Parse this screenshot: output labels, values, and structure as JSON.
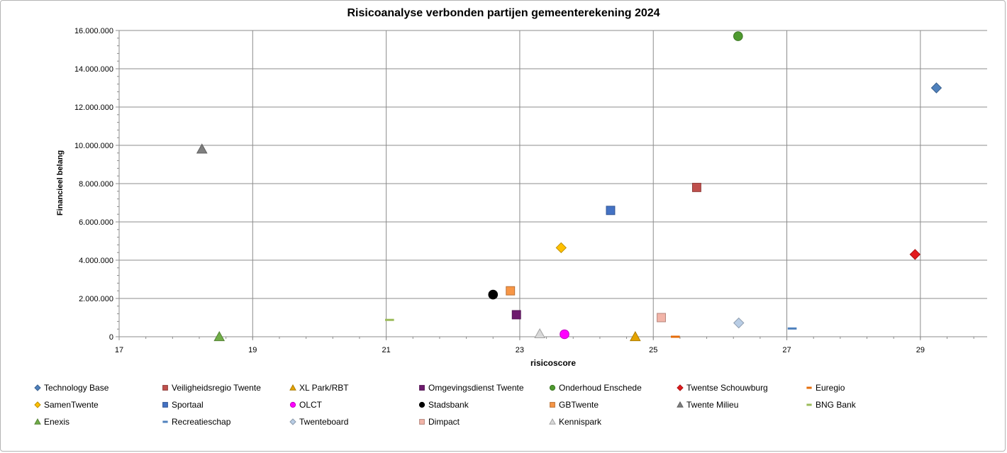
{
  "chart_data": {
    "type": "scatter",
    "title": "Risicoanalyse verbonden partijen gemeenterekening 2024",
    "xlabel": "risicoscore",
    "ylabel": "Financieel belang",
    "xlim": [
      17,
      30
    ],
    "ylim": [
      0,
      16000000
    ],
    "x_ticks": [
      17,
      19,
      21,
      23,
      25,
      27,
      29
    ],
    "x_tick_labels": [
      "17",
      "19",
      "21",
      "23",
      "25",
      "27",
      "29"
    ],
    "y_ticks": [
      0,
      2000000,
      4000000,
      6000000,
      8000000,
      10000000,
      12000000,
      14000000,
      16000000
    ],
    "y_tick_labels": [
      "0",
      "2.000.000",
      "4.000.000",
      "6.000.000",
      "8.000.000",
      "10.000.000",
      "12.000.000",
      "14.000.000",
      "16.000.000"
    ],
    "grid": true,
    "legend_position": "bottom",
    "series": [
      {
        "name": "Technology Base",
        "x": 29.24,
        "y": 13000000,
        "marker": "diamond",
        "color": "#4f81bd"
      },
      {
        "name": "Veiligheidsregio Twente",
        "x": 25.65,
        "y": 7800000,
        "marker": "square",
        "color": "#c0504d"
      },
      {
        "name": "XL Park/RBT",
        "x": 24.73,
        "y": 0,
        "marker": "triangle",
        "color": "#e5a400"
      },
      {
        "name": "Omgevingsdienst Twente",
        "x": 22.95,
        "y": 1150000,
        "marker": "square",
        "color": "#6e1a6e"
      },
      {
        "name": "Onderhoud Enschede",
        "x": 26.27,
        "y": 15700000,
        "marker": "circle",
        "color": "#4e9a2f"
      },
      {
        "name": "Twentse Schouwburg",
        "x": 28.92,
        "y": 4300000,
        "marker": "diamond",
        "color": "#e31a1c"
      },
      {
        "name": "Euregio",
        "x": 25.33,
        "y": 0,
        "marker": "dash",
        "color": "#e46c0a"
      },
      {
        "name": "SamenTwente",
        "x": 23.62,
        "y": 4650000,
        "marker": "diamond",
        "color": "#ffc000"
      },
      {
        "name": "Sportaal",
        "x": 24.36,
        "y": 6600000,
        "marker": "square",
        "color": "#4472c4"
      },
      {
        "name": "OLCT",
        "x": 23.67,
        "y": 130000,
        "marker": "circle",
        "color": "#ff00ff"
      },
      {
        "name": "Stadsbank",
        "x": 22.6,
        "y": 2200000,
        "marker": "circle",
        "color": "#000000"
      },
      {
        "name": "GBTwente",
        "x": 22.86,
        "y": 2400000,
        "marker": "square",
        "color": "#f79646"
      },
      {
        "name": "Twente Milieu",
        "x": 18.24,
        "y": 9800000,
        "marker": "triangle",
        "color": "#7f7f7f"
      },
      {
        "name": "BNG Bank",
        "x": 21.05,
        "y": 880000,
        "marker": "dash",
        "color": "#9bbb59"
      },
      {
        "name": "Enexis",
        "x": 18.5,
        "y": 0,
        "marker": "triangle",
        "color": "#70ad47"
      },
      {
        "name": "Recreatieschap",
        "x": 27.08,
        "y": 430000,
        "marker": "dash",
        "color": "#4f81bd"
      },
      {
        "name": "Twenteboard",
        "x": 26.28,
        "y": 720000,
        "marker": "diamond",
        "color": "#b9cde5"
      },
      {
        "name": "Dimpact",
        "x": 25.12,
        "y": 1000000,
        "marker": "square",
        "color": "#f2b4a8"
      },
      {
        "name": "Kennispark",
        "x": 23.3,
        "y": 150000,
        "marker": "triangle",
        "color": "#d9d9d9"
      }
    ]
  }
}
